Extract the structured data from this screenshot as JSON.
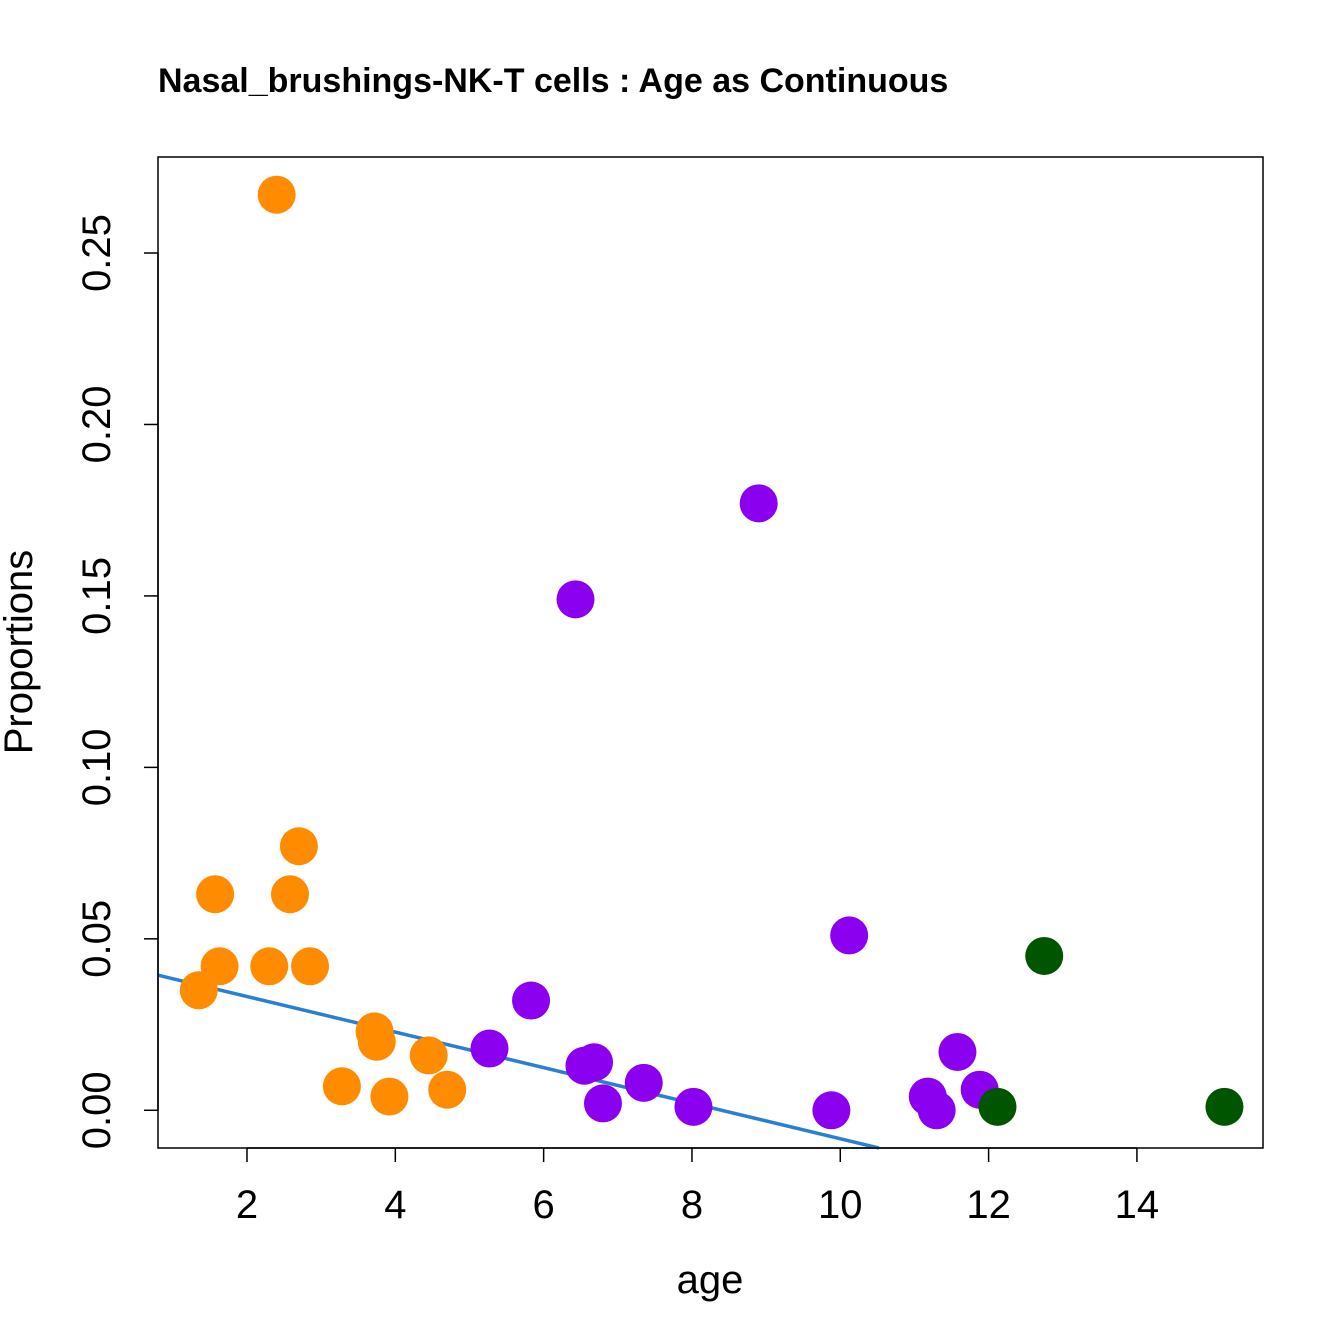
{
  "chart_data": {
    "type": "scatter",
    "title": "Nasal_brushings-NK-T cells : Age as Continuous",
    "xlabel": "age",
    "ylabel": "Proportions",
    "xlim": [
      0.8,
      15.7
    ],
    "ylim": [
      -0.011,
      0.278
    ],
    "xticks": [
      2,
      4,
      6,
      8,
      10,
      12,
      14
    ],
    "yticks": [
      0.0,
      0.05,
      0.1,
      0.15,
      0.2,
      0.25
    ],
    "ytick_labels": [
      "0.00",
      "0.05",
      "0.10",
      "0.15",
      "0.20",
      "0.25"
    ],
    "grid": false,
    "legend": "none",
    "series": [
      {
        "color": "#FF8C00",
        "points": [
          {
            "x": 1.35,
            "y": 0.035
          },
          {
            "x": 1.57,
            "y": 0.063
          },
          {
            "x": 1.63,
            "y": 0.042
          },
          {
            "x": 2.3,
            "y": 0.042
          },
          {
            "x": 2.4,
            "y": 0.267
          },
          {
            "x": 2.58,
            "y": 0.063
          },
          {
            "x": 2.7,
            "y": 0.077
          },
          {
            "x": 2.85,
            "y": 0.042
          },
          {
            "x": 3.28,
            "y": 0.007
          },
          {
            "x": 3.72,
            "y": 0.023
          },
          {
            "x": 3.75,
            "y": 0.02
          },
          {
            "x": 3.92,
            "y": 0.004
          },
          {
            "x": 4.45,
            "y": 0.016
          },
          {
            "x": 4.7,
            "y": 0.006
          }
        ]
      },
      {
        "color": "#8B00EE",
        "points": [
          {
            "x": 5.27,
            "y": 0.018
          },
          {
            "x": 5.83,
            "y": 0.032
          },
          {
            "x": 6.43,
            "y": 0.149
          },
          {
            "x": 6.55,
            "y": 0.013
          },
          {
            "x": 6.68,
            "y": 0.014
          },
          {
            "x": 6.8,
            "y": 0.002
          },
          {
            "x": 7.35,
            "y": 0.008
          },
          {
            "x": 8.02,
            "y": 0.001
          },
          {
            "x": 8.9,
            "y": 0.177
          },
          {
            "x": 9.88,
            "y": 0.0
          },
          {
            "x": 10.12,
            "y": 0.051
          },
          {
            "x": 11.18,
            "y": 0.004
          },
          {
            "x": 11.3,
            "y": 0.0
          },
          {
            "x": 11.58,
            "y": 0.017
          },
          {
            "x": 11.88,
            "y": 0.006
          }
        ]
      },
      {
        "color": "#005500",
        "points": [
          {
            "x": 12.12,
            "y": 0.001
          },
          {
            "x": 12.75,
            "y": 0.045
          },
          {
            "x": 15.18,
            "y": 0.001
          }
        ]
      }
    ],
    "trend_line": {
      "color": "#2A7FD4",
      "x": [
        0.8,
        10.52
      ],
      "y": [
        0.0394,
        -0.011
      ]
    }
  }
}
